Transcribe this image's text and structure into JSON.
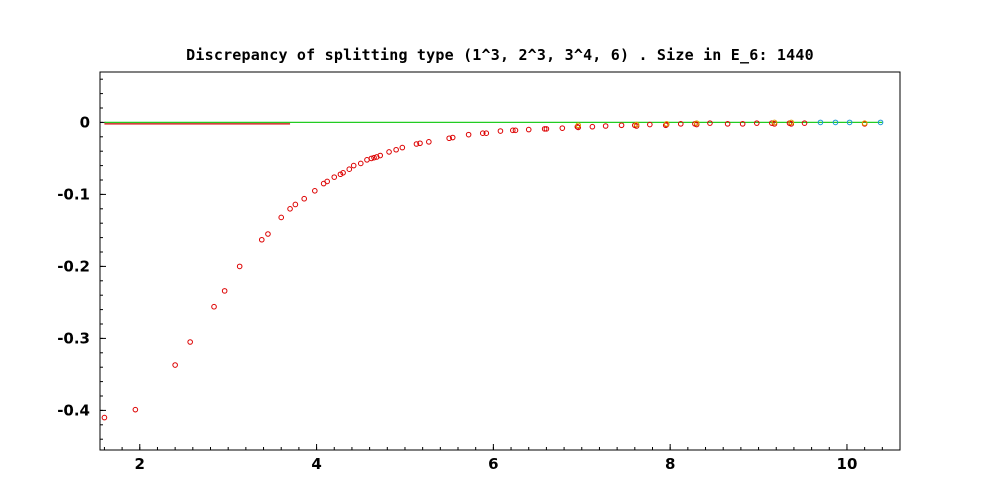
{
  "chart_data": {
    "type": "scatter",
    "title": "Discrepancy of splitting type (1^3, 2^3, 3^4, 6) .  Size in E_6: 1440",
    "xlabel": "",
    "ylabel": "",
    "xlim": [
      1.55,
      10.6
    ],
    "ylim": [
      -0.455,
      0.07
    ],
    "x_ticks": [
      2,
      4,
      6,
      8,
      10
    ],
    "x_tick_labels": [
      "2",
      "4",
      "6",
      "8",
      "10"
    ],
    "y_ticks": [
      0,
      -0.1,
      -0.2,
      -0.3,
      -0.4
    ],
    "y_tick_labels": [
      "0",
      "-0.1",
      "-0.2",
      "-0.3",
      "-0.4"
    ],
    "grid": false,
    "legend": "none",
    "reference_lines": [
      {
        "color": "#22cc22",
        "x": [
          1.6,
          10.4
        ],
        "y": [
          0,
          0
        ]
      },
      {
        "color": "#cc0000",
        "x": [
          1.6,
          3.7
        ],
        "y": [
          -0.002,
          -0.002
        ]
      }
    ],
    "series": [
      {
        "color": "#dd0000",
        "points": [
          [
            1.6,
            -0.41
          ],
          [
            1.95,
            -0.399
          ],
          [
            2.4,
            -0.337
          ],
          [
            2.57,
            -0.305
          ],
          [
            2.84,
            -0.256
          ],
          [
            2.96,
            -0.234
          ],
          [
            3.13,
            -0.2
          ],
          [
            3.38,
            -0.163
          ],
          [
            3.45,
            -0.155
          ],
          [
            3.6,
            -0.132
          ],
          [
            3.7,
            -0.12
          ],
          [
            3.76,
            -0.114
          ],
          [
            3.86,
            -0.106
          ],
          [
            3.98,
            -0.095
          ],
          [
            4.08,
            -0.085
          ],
          [
            4.12,
            -0.082
          ],
          [
            4.2,
            -0.076
          ],
          [
            4.27,
            -0.072
          ],
          [
            4.3,
            -0.07
          ],
          [
            4.37,
            -0.065
          ],
          [
            4.42,
            -0.06
          ],
          [
            4.5,
            -0.057
          ],
          [
            4.57,
            -0.052
          ],
          [
            4.62,
            -0.05
          ],
          [
            4.65,
            -0.049
          ],
          [
            4.68,
            -0.048
          ],
          [
            4.72,
            -0.046
          ],
          [
            4.82,
            -0.041
          ],
          [
            4.9,
            -0.038
          ],
          [
            4.97,
            -0.035
          ],
          [
            5.13,
            -0.03
          ],
          [
            5.17,
            -0.029
          ],
          [
            5.27,
            -0.027
          ],
          [
            5.5,
            -0.022
          ],
          [
            5.54,
            -0.021
          ],
          [
            5.72,
            -0.017
          ],
          [
            5.88,
            -0.015
          ],
          [
            5.92,
            -0.015
          ],
          [
            6.08,
            -0.012
          ],
          [
            6.22,
            -0.011
          ],
          [
            6.25,
            -0.011
          ],
          [
            6.4,
            -0.01
          ],
          [
            6.58,
            -0.009
          ],
          [
            6.6,
            -0.009
          ],
          [
            6.78,
            -0.008
          ],
          [
            6.95,
            -0.006
          ],
          [
            6.96,
            -0.007
          ],
          [
            7.12,
            -0.006
          ],
          [
            7.27,
            -0.005
          ],
          [
            7.45,
            -0.004
          ],
          [
            7.6,
            -0.004
          ],
          [
            7.62,
            -0.005
          ],
          [
            7.77,
            -0.003
          ],
          [
            7.95,
            -0.004
          ],
          [
            7.96,
            -0.003
          ],
          [
            8.12,
            -0.002
          ],
          [
            8.28,
            -0.002
          ],
          [
            8.3,
            -0.003
          ],
          [
            8.45,
            -0.001
          ],
          [
            8.65,
            -0.002
          ],
          [
            8.82,
            -0.002
          ],
          [
            8.98,
            -0.001
          ],
          [
            9.15,
            -0.001
          ],
          [
            9.18,
            -0.002
          ],
          [
            9.35,
            -0.001
          ],
          [
            9.37,
            -0.002
          ],
          [
            9.52,
            -0.001
          ],
          [
            10.2,
            -0.002
          ]
        ]
      },
      {
        "color": "#e0a000",
        "points": [
          [
            6.96,
            -0.004
          ],
          [
            7.62,
            -0.003
          ],
          [
            7.96,
            -0.002
          ],
          [
            8.3,
            -0.001
          ],
          [
            9.18,
            0.0
          ],
          [
            9.37,
            0.0
          ],
          [
            10.2,
            -0.001
          ]
        ]
      },
      {
        "color": "#1a9ad6",
        "points": [
          [
            9.7,
            0.0
          ],
          [
            9.87,
            0.0
          ],
          [
            10.03,
            0.0
          ],
          [
            10.38,
            0.0
          ]
        ]
      }
    ]
  }
}
